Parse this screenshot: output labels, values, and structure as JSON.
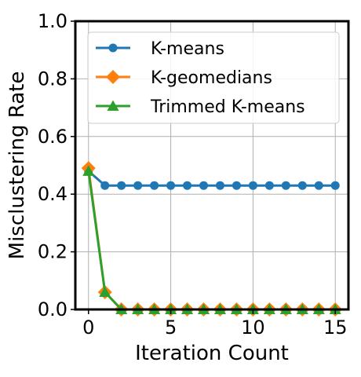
{
  "chart_data": {
    "type": "line",
    "xlabel": "Iteration Count",
    "ylabel": "Misclustering Rate",
    "xlim": [
      -0.8,
      15.8
    ],
    "ylim": [
      0,
      1.0
    ],
    "x_ticks": [
      0,
      5,
      10,
      15
    ],
    "y_ticks": [
      0.0,
      0.2,
      0.4,
      0.6,
      0.8,
      1.0
    ],
    "x_tick_labels": [
      "0",
      "5",
      "10",
      "15"
    ],
    "y_tick_labels": [
      "0.0",
      "0.2",
      "0.4",
      "0.6",
      "0.8",
      "1.0"
    ],
    "grid": true,
    "legend_position": "top-right",
    "x": [
      0,
      1,
      2,
      3,
      4,
      5,
      6,
      7,
      8,
      9,
      10,
      11,
      12,
      13,
      14,
      15
    ],
    "series": [
      {
        "name": "K-means",
        "color": "#1f77b4",
        "marker": "circle",
        "values": [
          0.48,
          0.43,
          0.43,
          0.43,
          0.43,
          0.43,
          0.43,
          0.43,
          0.43,
          0.43,
          0.43,
          0.43,
          0.43,
          0.43,
          0.43,
          0.43
        ]
      },
      {
        "name": "K-geomedians",
        "color": "#ff7f0e",
        "marker": "diamond",
        "values": [
          0.49,
          0.06,
          0.0,
          0.0,
          0.0,
          0.0,
          0.0,
          0.0,
          0.0,
          0.0,
          0.0,
          0.0,
          0.0,
          0.0,
          0.0,
          0.0
        ]
      },
      {
        "name": "Trimmed K-means",
        "color": "#2ca02c",
        "marker": "triangle",
        "values": [
          0.48,
          0.06,
          0.0,
          0.0,
          0.0,
          0.0,
          0.0,
          0.0,
          0.0,
          0.0,
          0.0,
          0.0,
          0.0,
          0.0,
          0.0,
          0.0
        ]
      }
    ]
  }
}
